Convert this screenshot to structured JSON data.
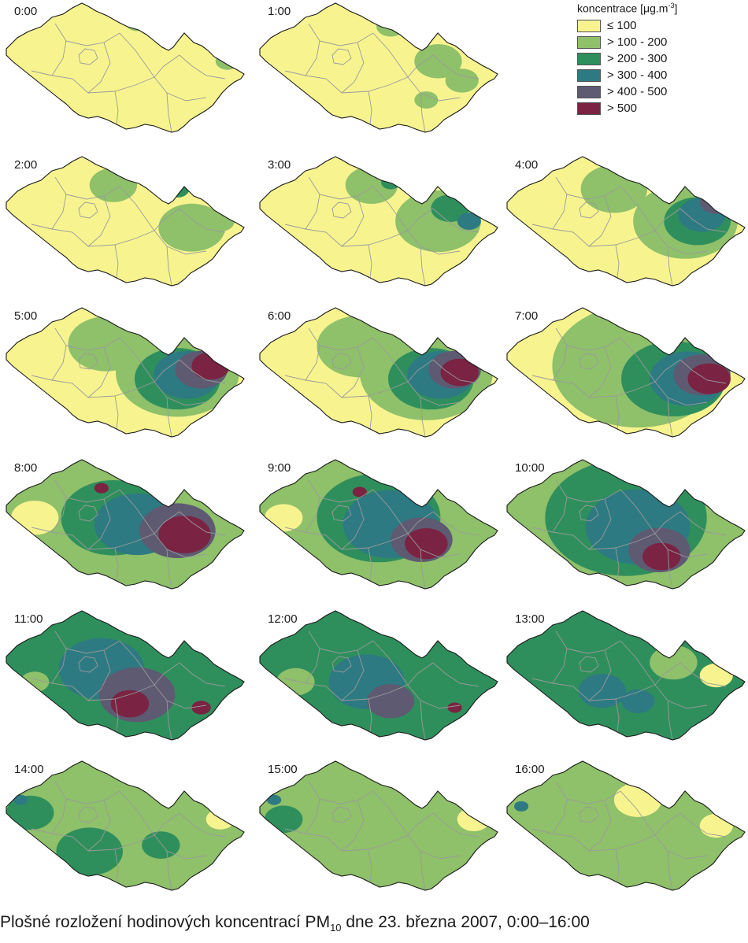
{
  "legend": {
    "title_main": "koncentrace [μg.m",
    "title_exp": "-3",
    "title_close": "]",
    "items": [
      {
        "label": "≤ 100",
        "color": "#f7f490"
      },
      {
        "label": "> 100 - 200",
        "color": "#8fc06a"
      },
      {
        "label": "> 200 - 300",
        "color": "#2f8f5c"
      },
      {
        "label": "> 300 - 400",
        "color": "#2d7a82"
      },
      {
        "label": "> 400 - 500",
        "color": "#5e5a72"
      },
      {
        "label": "> 500",
        "color": "#7a2342"
      }
    ]
  },
  "caption": {
    "main": "Plošné rozložení hodinových koncentrací PM",
    "sub": "10",
    "rest": " dne 23. března 2007, 0:00–16:00"
  },
  "colors": {
    "border": "#1a1a1a",
    "regions": "#9a9a9a"
  },
  "maps": [
    {
      "time": "0:00",
      "base": 0,
      "blobs": [
        [
          0.93,
          0.45,
          0.05,
          1
        ],
        [
          0.55,
          0.15,
          0.05,
          1
        ],
        [
          0.72,
          0.2,
          0.04,
          1
        ]
      ]
    },
    {
      "time": "1:00",
      "base": 0,
      "blobs": [
        [
          0.75,
          0.45,
          0.1,
          1
        ],
        [
          0.55,
          0.18,
          0.06,
          1
        ],
        [
          0.85,
          0.6,
          0.07,
          1
        ],
        [
          0.7,
          0.75,
          0.05,
          1
        ]
      ]
    },
    {
      "time": "2:00",
      "base": 0,
      "blobs": [
        [
          0.78,
          0.55,
          0.14,
          1
        ],
        [
          0.45,
          0.22,
          0.1,
          1
        ],
        [
          0.72,
          0.25,
          0.05,
          2
        ],
        [
          0.9,
          0.5,
          0.06,
          1
        ]
      ]
    },
    {
      "time": "3:00",
      "base": 0,
      "blobs": [
        [
          0.75,
          0.5,
          0.18,
          1
        ],
        [
          0.47,
          0.22,
          0.11,
          1
        ],
        [
          0.55,
          0.2,
          0.04,
          2
        ],
        [
          0.8,
          0.4,
          0.08,
          2
        ],
        [
          0.88,
          0.5,
          0.05,
          3
        ]
      ]
    },
    {
      "time": "4:00",
      "base": 0,
      "blobs": [
        [
          0.75,
          0.5,
          0.22,
          1
        ],
        [
          0.45,
          0.25,
          0.14,
          1
        ],
        [
          0.8,
          0.5,
          0.14,
          2
        ],
        [
          0.82,
          0.45,
          0.1,
          3
        ],
        [
          0.88,
          0.35,
          0.07,
          4
        ],
        [
          0.93,
          0.35,
          0.04,
          5
        ]
      ]
    },
    {
      "time": "5:00",
      "base": 0,
      "blobs": [
        [
          0.72,
          0.5,
          0.26,
          1
        ],
        [
          0.42,
          0.28,
          0.16,
          1
        ],
        [
          0.72,
          0.55,
          0.18,
          2
        ],
        [
          0.76,
          0.52,
          0.14,
          3
        ],
        [
          0.82,
          0.48,
          0.11,
          4
        ],
        [
          0.86,
          0.45,
          0.08,
          5
        ]
      ]
    },
    {
      "time": "6:00",
      "base": 0,
      "blobs": [
        [
          0.7,
          0.5,
          0.28,
          1
        ],
        [
          0.42,
          0.3,
          0.18,
          1
        ],
        [
          0.72,
          0.55,
          0.18,
          2
        ],
        [
          0.76,
          0.52,
          0.14,
          3
        ],
        [
          0.82,
          0.48,
          0.11,
          4
        ],
        [
          0.84,
          0.5,
          0.08,
          5
        ]
      ]
    },
    {
      "time": "7:00",
      "base": 0,
      "blobs": [
        [
          0.55,
          0.45,
          0.36,
          1
        ],
        [
          0.7,
          0.55,
          0.22,
          2
        ],
        [
          0.76,
          0.55,
          0.16,
          3
        ],
        [
          0.82,
          0.52,
          0.12,
          4
        ],
        [
          0.85,
          0.55,
          0.09,
          5
        ]
      ]
    },
    {
      "time": "8:00",
      "base": 1,
      "blobs": [
        [
          0.12,
          0.45,
          0.1,
          0
        ],
        [
          0.45,
          0.45,
          0.22,
          2
        ],
        [
          0.55,
          0.5,
          0.18,
          3
        ],
        [
          0.72,
          0.55,
          0.16,
          4
        ],
        [
          0.75,
          0.58,
          0.11,
          5
        ],
        [
          0.4,
          0.22,
          0.03,
          5
        ]
      ]
    },
    {
      "time": "9:00",
      "base": 1,
      "blobs": [
        [
          0.1,
          0.45,
          0.08,
          0
        ],
        [
          0.5,
          0.45,
          0.26,
          2
        ],
        [
          0.55,
          0.5,
          0.2,
          3
        ],
        [
          0.68,
          0.62,
          0.13,
          4
        ],
        [
          0.7,
          0.65,
          0.09,
          5
        ],
        [
          0.42,
          0.25,
          0.03,
          5
        ]
      ]
    },
    {
      "time": "10:00",
      "base": 1,
      "blobs": [
        [
          0.5,
          0.45,
          0.34,
          2
        ],
        [
          0.55,
          0.52,
          0.22,
          3
        ],
        [
          0.64,
          0.7,
          0.13,
          4
        ],
        [
          0.65,
          0.75,
          0.08,
          5
        ]
      ]
    },
    {
      "time": "11:00",
      "base": 2,
      "blobs": [
        [
          0.12,
          0.55,
          0.06,
          1
        ],
        [
          0.4,
          0.45,
          0.18,
          3
        ],
        [
          0.55,
          0.65,
          0.16,
          4
        ],
        [
          0.52,
          0.72,
          0.08,
          5
        ],
        [
          0.82,
          0.75,
          0.04,
          5
        ]
      ]
    },
    {
      "time": "12:00",
      "base": 2,
      "blobs": [
        [
          0.15,
          0.55,
          0.08,
          1
        ],
        [
          0.45,
          0.55,
          0.16,
          3
        ],
        [
          0.55,
          0.7,
          0.1,
          4
        ],
        [
          0.82,
          0.75,
          0.03,
          5
        ]
      ]
    },
    {
      "time": "13:00",
      "base": 2,
      "blobs": [
        [
          0.88,
          0.5,
          0.07,
          0
        ],
        [
          0.7,
          0.4,
          0.1,
          1
        ],
        [
          0.4,
          0.62,
          0.1,
          3
        ],
        [
          0.55,
          0.7,
          0.07,
          3
        ]
      ]
    },
    {
      "time": "14:00",
      "base": 1,
      "blobs": [
        [
          0.9,
          0.45,
          0.06,
          0
        ],
        [
          0.1,
          0.4,
          0.1,
          2
        ],
        [
          0.35,
          0.7,
          0.14,
          2
        ],
        [
          0.65,
          0.65,
          0.08,
          2
        ],
        [
          0.06,
          0.3,
          0.03,
          3
        ]
      ]
    },
    {
      "time": "15:00",
      "base": 1,
      "blobs": [
        [
          0.9,
          0.45,
          0.07,
          0
        ],
        [
          0.1,
          0.45,
          0.08,
          2
        ],
        [
          0.06,
          0.3,
          0.03,
          3
        ]
      ]
    },
    {
      "time": "16:00",
      "base": 1,
      "blobs": [
        [
          0.88,
          0.5,
          0.07,
          0
        ],
        [
          0.55,
          0.3,
          0.1,
          0
        ],
        [
          0.06,
          0.35,
          0.03,
          3
        ]
      ]
    }
  ]
}
